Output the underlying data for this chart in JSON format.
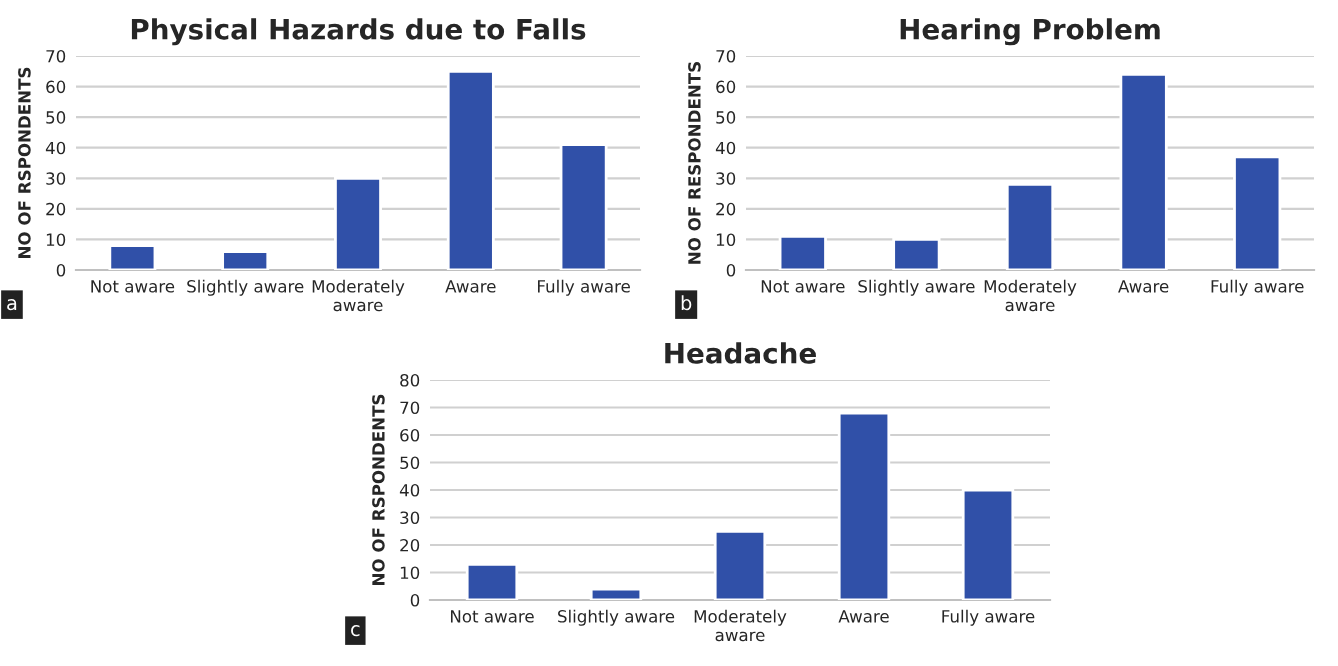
{
  "chart_data": [
    {
      "type": "bar",
      "title": "Physical Hazards due to Falls",
      "ylabel": "NO OF RSPONDENTS",
      "categories": [
        "Not aware",
        "Slightly aware",
        "Moderately\naware",
        "Aware",
        "Fully aware"
      ],
      "values": [
        8,
        6,
        30,
        65,
        41
      ],
      "color": "#3050a8",
      "ylim": [
        0,
        70
      ],
      "yticks": [
        0,
        10,
        20,
        30,
        40,
        50,
        60,
        70
      ],
      "grid": "y",
      "annotations": [
        "a"
      ]
    },
    {
      "type": "bar",
      "title": "Hearing Problem",
      "ylabel": "NO OF RESPONDENTS",
      "categories": [
        "Not aware",
        "Slightly aware",
        "Moderately\naware",
        "Aware",
        "Fully aware"
      ],
      "values": [
        11,
        10,
        28,
        64,
        37
      ],
      "color": "#3050a8",
      "ylim": [
        0,
        70
      ],
      "yticks": [
        0,
        10,
        20,
        30,
        40,
        50,
        60,
        70
      ],
      "grid": "y",
      "annotations": [
        "b"
      ]
    },
    {
      "type": "bar",
      "title": "Headache",
      "ylabel": "NO OF RSPONDENTS",
      "categories": [
        "Not aware",
        "Slightly aware",
        "Moderately\naware",
        "Aware",
        "Fully aware"
      ],
      "values": [
        13,
        4,
        25,
        68,
        40
      ],
      "color": "#3050a8",
      "ylim": [
        0,
        80
      ],
      "yticks": [
        0,
        10,
        20,
        30,
        40,
        50,
        60,
        70,
        80
      ],
      "grid": "y",
      "annotations": [
        "c"
      ]
    }
  ]
}
